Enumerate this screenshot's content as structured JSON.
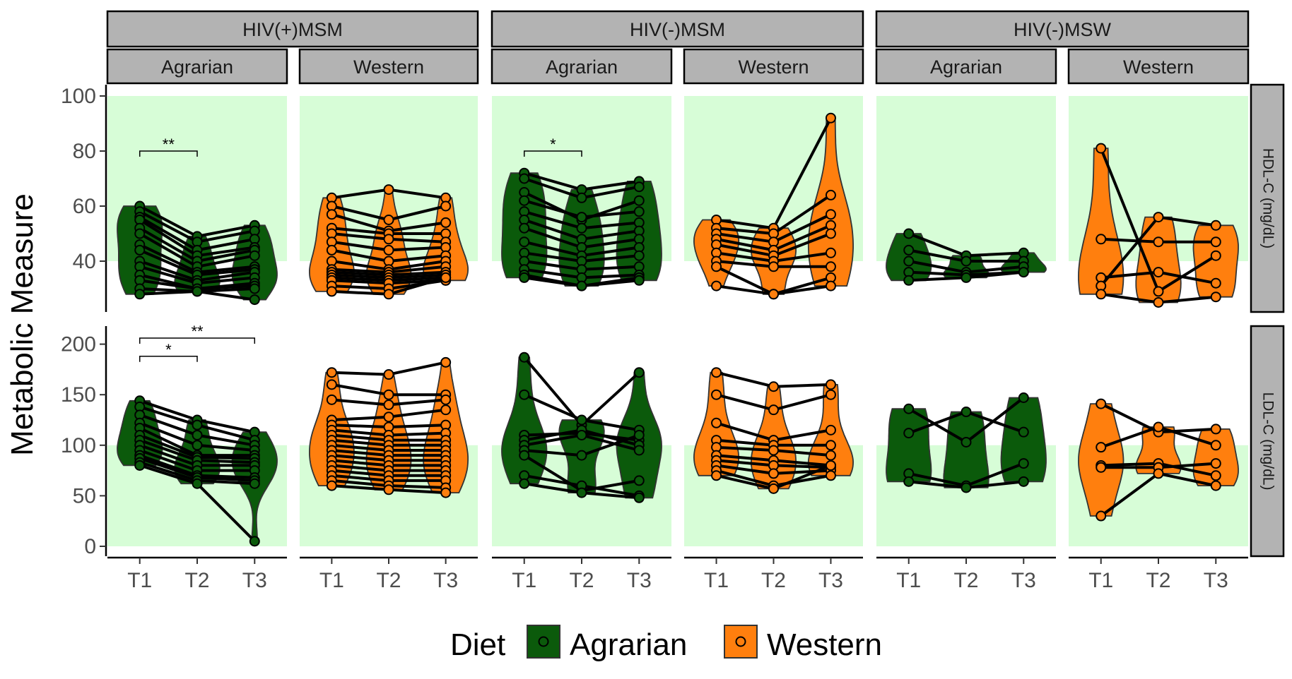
{
  "chart_data": {
    "type": "violin",
    "ylabel": "Metabolic Measure",
    "xlabel": "",
    "x_categories": [
      "T1",
      "T2",
      "T3"
    ],
    "column_groups": [
      "HIV(+)MSM",
      "HIV(-)MSM",
      "HIV(-)MSW"
    ],
    "diets": [
      "Agrarian",
      "Western"
    ],
    "rows": [
      {
        "label": "HDL-C (mg/dL)",
        "ylim": [
          20,
          100
        ],
        "yticks": [
          "40",
          "60",
          "80",
          "100"
        ],
        "ytick_values": [
          40,
          60,
          80,
          100
        ],
        "reference_band": [
          40,
          100
        ]
      },
      {
        "label": "LDL-C (mg/dL)",
        "ylim": [
          -10,
          220
        ],
        "yticks": [
          "0",
          "50",
          "100",
          "150",
          "200"
        ],
        "ytick_values": [
          0,
          50,
          100,
          150,
          200
        ],
        "reference_band": [
          0,
          100
        ]
      }
    ],
    "legend": {
      "title": "Diet",
      "position": "bottom",
      "entries": [
        {
          "label": "Agrarian",
          "color": "#0b5a0b"
        },
        {
          "label": "Western",
          "color": "#ff7f0e"
        }
      ]
    },
    "colors": {
      "Agrarian": "#0b5a0b",
      "Western": "#ff7f0e",
      "band": "#d7fdd7",
      "strip": "#b3b3b3"
    },
    "panels": [
      {
        "row": 0,
        "group": "HIV(+)MSM",
        "diet": "Agrarian",
        "subjects": [
          [
            60,
            49,
            53
          ],
          [
            58,
            47,
            51
          ],
          [
            56,
            44,
            48
          ],
          [
            55,
            42,
            45
          ],
          [
            52,
            40,
            44
          ],
          [
            50,
            38,
            42
          ],
          [
            46,
            36,
            38
          ],
          [
            44,
            35,
            37
          ],
          [
            40,
            33,
            36
          ],
          [
            38,
            32,
            34
          ],
          [
            35,
            30,
            32
          ],
          [
            33,
            30,
            31
          ],
          [
            30,
            29,
            30
          ],
          [
            28,
            29,
            26
          ]
        ],
        "significance": [
          {
            "from": "T1",
            "to": "T2",
            "label": "**",
            "y": 80
          }
        ]
      },
      {
        "row": 0,
        "group": "HIV(+)MSM",
        "diet": "Western",
        "subjects": [
          [
            63,
            66,
            63
          ],
          [
            60,
            55,
            60
          ],
          [
            57,
            51,
            54
          ],
          [
            52,
            50,
            50
          ],
          [
            50,
            48,
            47
          ],
          [
            47,
            44,
            45
          ],
          [
            44,
            40,
            42
          ],
          [
            40,
            37,
            40
          ],
          [
            37,
            36,
            38
          ],
          [
            36,
            35,
            36
          ],
          [
            35,
            34,
            35
          ],
          [
            34,
            33,
            34
          ],
          [
            33,
            32,
            33
          ],
          [
            31,
            30,
            33
          ],
          [
            29,
            28,
            34
          ]
        ],
        "significance": []
      },
      {
        "row": 0,
        "group": "HIV(-)MSM",
        "diet": "Agrarian",
        "subjects": [
          [
            72,
            66,
            69
          ],
          [
            70,
            63,
            67
          ],
          [
            65,
            55,
            62
          ],
          [
            62,
            56,
            58
          ],
          [
            58,
            52,
            54
          ],
          [
            55,
            48,
            51
          ],
          [
            52,
            45,
            48
          ],
          [
            47,
            42,
            45
          ],
          [
            43,
            40,
            42
          ],
          [
            40,
            37,
            38
          ],
          [
            37,
            34,
            35
          ],
          [
            35,
            31,
            34
          ],
          [
            34,
            31,
            33
          ]
        ],
        "significance": [
          {
            "from": "T1",
            "to": "T2",
            "label": "*",
            "y": 80
          }
        ]
      },
      {
        "row": 0,
        "group": "HIV(-)MSM",
        "diet": "Western",
        "subjects": [
          [
            55,
            52,
            92
          ],
          [
            52,
            50,
            64
          ],
          [
            50,
            47,
            57
          ],
          [
            48,
            44,
            53
          ],
          [
            46,
            42,
            50
          ],
          [
            43,
            40,
            43
          ],
          [
            40,
            38,
            38
          ],
          [
            38,
            28,
            34
          ],
          [
            31,
            28,
            31
          ]
        ],
        "significance": []
      },
      {
        "row": 0,
        "group": "HIV(-)MSW",
        "diet": "Agrarian",
        "subjects": [
          [
            50,
            42,
            43
          ],
          [
            44,
            40,
            40
          ],
          [
            40,
            36,
            38
          ],
          [
            36,
            35,
            36
          ],
          [
            33,
            34,
            36
          ]
        ],
        "significance": []
      },
      {
        "row": 0,
        "group": "HIV(-)MSW",
        "diet": "Western",
        "subjects": [
          [
            81,
            29,
            42
          ],
          [
            48,
            47,
            47
          ],
          [
            34,
            36,
            32
          ],
          [
            31,
            56,
            53
          ],
          [
            28,
            25,
            27
          ]
        ],
        "significance": []
      },
      {
        "row": 1,
        "group": "HIV(+)MSM",
        "diet": "Agrarian",
        "subjects": [
          [
            144,
            125,
            113
          ],
          [
            138,
            120,
            105
          ],
          [
            130,
            110,
            100
          ],
          [
            122,
            100,
            95
          ],
          [
            117,
            90,
            90
          ],
          [
            110,
            88,
            87
          ],
          [
            105,
            85,
            83
          ],
          [
            100,
            80,
            80
          ],
          [
            95,
            75,
            75
          ],
          [
            90,
            70,
            68
          ],
          [
            87,
            68,
            65
          ],
          [
            83,
            65,
            62
          ],
          [
            80,
            62,
            5
          ]
        ],
        "significance": [
          {
            "from": "T1",
            "to": "T2",
            "label": "*",
            "y": 188
          },
          {
            "from": "T1",
            "to": "T3",
            "label": "**",
            "y": 206
          }
        ]
      },
      {
        "row": 1,
        "group": "HIV(+)MSM",
        "diet": "Western",
        "subjects": [
          [
            172,
            170,
            182
          ],
          [
            160,
            150,
            150
          ],
          [
            145,
            140,
            145
          ],
          [
            125,
            128,
            135
          ],
          [
            120,
            118,
            120
          ],
          [
            115,
            110,
            112
          ],
          [
            110,
            105,
            105
          ],
          [
            105,
            100,
            100
          ],
          [
            100,
            95,
            95
          ],
          [
            95,
            90,
            90
          ],
          [
            90,
            85,
            85
          ],
          [
            85,
            80,
            80
          ],
          [
            80,
            75,
            75
          ],
          [
            75,
            70,
            70
          ],
          [
            70,
            65,
            65
          ],
          [
            65,
            60,
            58
          ],
          [
            60,
            56,
            53
          ]
        ],
        "significance": []
      },
      {
        "row": 1,
        "group": "HIV(-)MSM",
        "diet": "Agrarian",
        "subjects": [
          [
            187,
            120,
            172
          ],
          [
            150,
            125,
            115
          ],
          [
            110,
            112,
            105
          ],
          [
            105,
            115,
            100
          ],
          [
            100,
            110,
            95
          ],
          [
            95,
            90,
            110
          ],
          [
            90,
            55,
            65
          ],
          [
            70,
            60,
            50
          ],
          [
            62,
            53,
            48
          ]
        ],
        "significance": []
      },
      {
        "row": 1,
        "group": "HIV(-)MSM",
        "diet": "Western",
        "subjects": [
          [
            172,
            158,
            160
          ],
          [
            150,
            135,
            150
          ],
          [
            122,
            105,
            115
          ],
          [
            105,
            100,
            100
          ],
          [
            98,
            95,
            90
          ],
          [
            90,
            85,
            80
          ],
          [
            85,
            80,
            78
          ],
          [
            80,
            72,
            75
          ],
          [
            75,
            60,
            70
          ],
          [
            70,
            57,
            80
          ]
        ],
        "significance": []
      },
      {
        "row": 1,
        "group": "HIV(-)MSW",
        "diet": "Agrarian",
        "subjects": [
          [
            136,
            103,
            147
          ],
          [
            112,
            133,
            113
          ],
          [
            72,
            60,
            82
          ],
          [
            64,
            58,
            64
          ]
        ],
        "significance": []
      },
      {
        "row": 1,
        "group": "HIV(-)MSW",
        "diet": "Western",
        "subjects": [
          [
            141,
            113,
            116
          ],
          [
            98,
            118,
            100
          ],
          [
            80,
            82,
            70
          ],
          [
            78,
            78,
            82
          ],
          [
            30,
            72,
            60
          ]
        ],
        "significance": []
      }
    ]
  }
}
